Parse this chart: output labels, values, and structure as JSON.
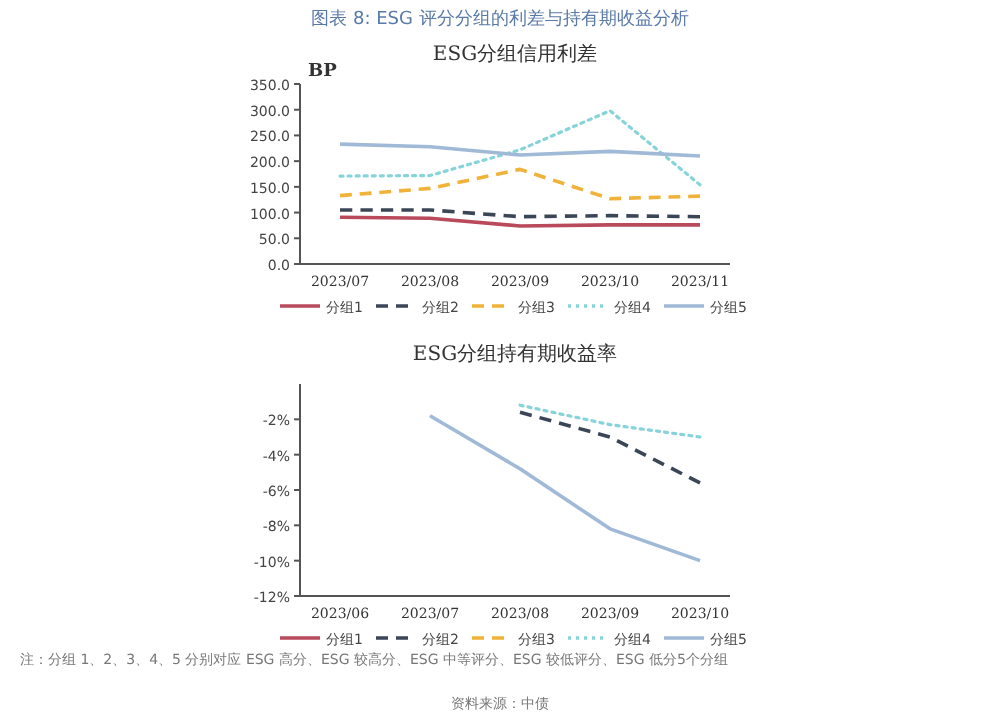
{
  "chart_data": [
    {
      "type": "line",
      "title": "ESG分组信用利差",
      "ylabel": "BP",
      "annotations": [
        "图表 8:  ESG 评分分组的利差与持有期收益分析"
      ],
      "categories": [
        "2023/07",
        "2023/08",
        "2023/09",
        "2023/10",
        "2023/11"
      ],
      "ylim": [
        0,
        350
      ],
      "yticks": [
        {
          "value": 0,
          "label": "0.0"
        },
        {
          "value": 50,
          "label": "50.0"
        },
        {
          "value": 100,
          "label": "100.0"
        },
        {
          "value": 150,
          "label": "150.0"
        },
        {
          "value": 200,
          "label": "200.0"
        },
        {
          "value": 250,
          "label": "250.0"
        },
        {
          "value": 300,
          "label": "300.0"
        },
        {
          "value": 350,
          "label": "350.0"
        }
      ],
      "grid": false,
      "legend": "bottom",
      "series": [
        {
          "name": "分组1",
          "color": "#b84a5c",
          "line_style": "solid",
          "values": [
            91,
            89,
            74,
            76,
            76
          ]
        },
        {
          "name": "分组2",
          "color": "#3a4556",
          "line_style": "dashed",
          "values": [
            105,
            105,
            92,
            94,
            92
          ]
        },
        {
          "name": "分组3",
          "color": "#f0b238",
          "line_style": "dashed",
          "values": [
            133,
            147,
            184,
            127,
            132
          ]
        },
        {
          "name": "分组4",
          "color": "#86d4da",
          "line_style": "dotted",
          "values": [
            171,
            172,
            222,
            298,
            154
          ]
        },
        {
          "name": "分组5",
          "color": "#9fb9d6",
          "line_style": "solid",
          "values": [
            233,
            228,
            212,
            219,
            210
          ]
        }
      ]
    },
    {
      "type": "line",
      "title": "ESG分组持有期收益率",
      "annotations": [
        "注：分组 1、2、3、4、5 分别对应 ESG 高分、ESG 较高分、ESG 中等评分、ESG 较低评分、ESG 低分5个分组",
        "资料来源：中债"
      ],
      "categories": [
        "2023/06",
        "2023/07",
        "2023/08",
        "2023/09",
        "2023/10"
      ],
      "ylim": [
        -12,
        0
      ],
      "yticks": [
        {
          "value": -12,
          "label": "-12%"
        },
        {
          "value": -10,
          "label": "-10%"
        },
        {
          "value": -8,
          "label": "-8%"
        },
        {
          "value": -6,
          "label": "-6%"
        },
        {
          "value": -4,
          "label": "-4%"
        },
        {
          "value": -2,
          "label": "-2%"
        }
      ],
      "grid": false,
      "legend": "bottom",
      "series": [
        {
          "name": "分组1",
          "color": "#b84a5c",
          "line_style": "solid",
          "values": [
            null,
            null,
            null,
            null,
            null
          ]
        },
        {
          "name": "分组2",
          "color": "#3a4556",
          "line_style": "dashed",
          "values": [
            null,
            null,
            -1.6,
            -3.0,
            -5.6
          ]
        },
        {
          "name": "分组3",
          "color": "#f0b238",
          "line_style": "dashed",
          "values": [
            null,
            null,
            null,
            null,
            null
          ]
        },
        {
          "name": "分组4",
          "color": "#86d4da",
          "line_style": "dotted",
          "values": [
            null,
            null,
            -1.2,
            -2.3,
            -3.0
          ]
        },
        {
          "name": "分组5",
          "color": "#9fb9d6",
          "line_style": "solid",
          "values": [
            null,
            -1.8,
            -4.8,
            -8.2,
            -10.0
          ]
        }
      ]
    }
  ]
}
